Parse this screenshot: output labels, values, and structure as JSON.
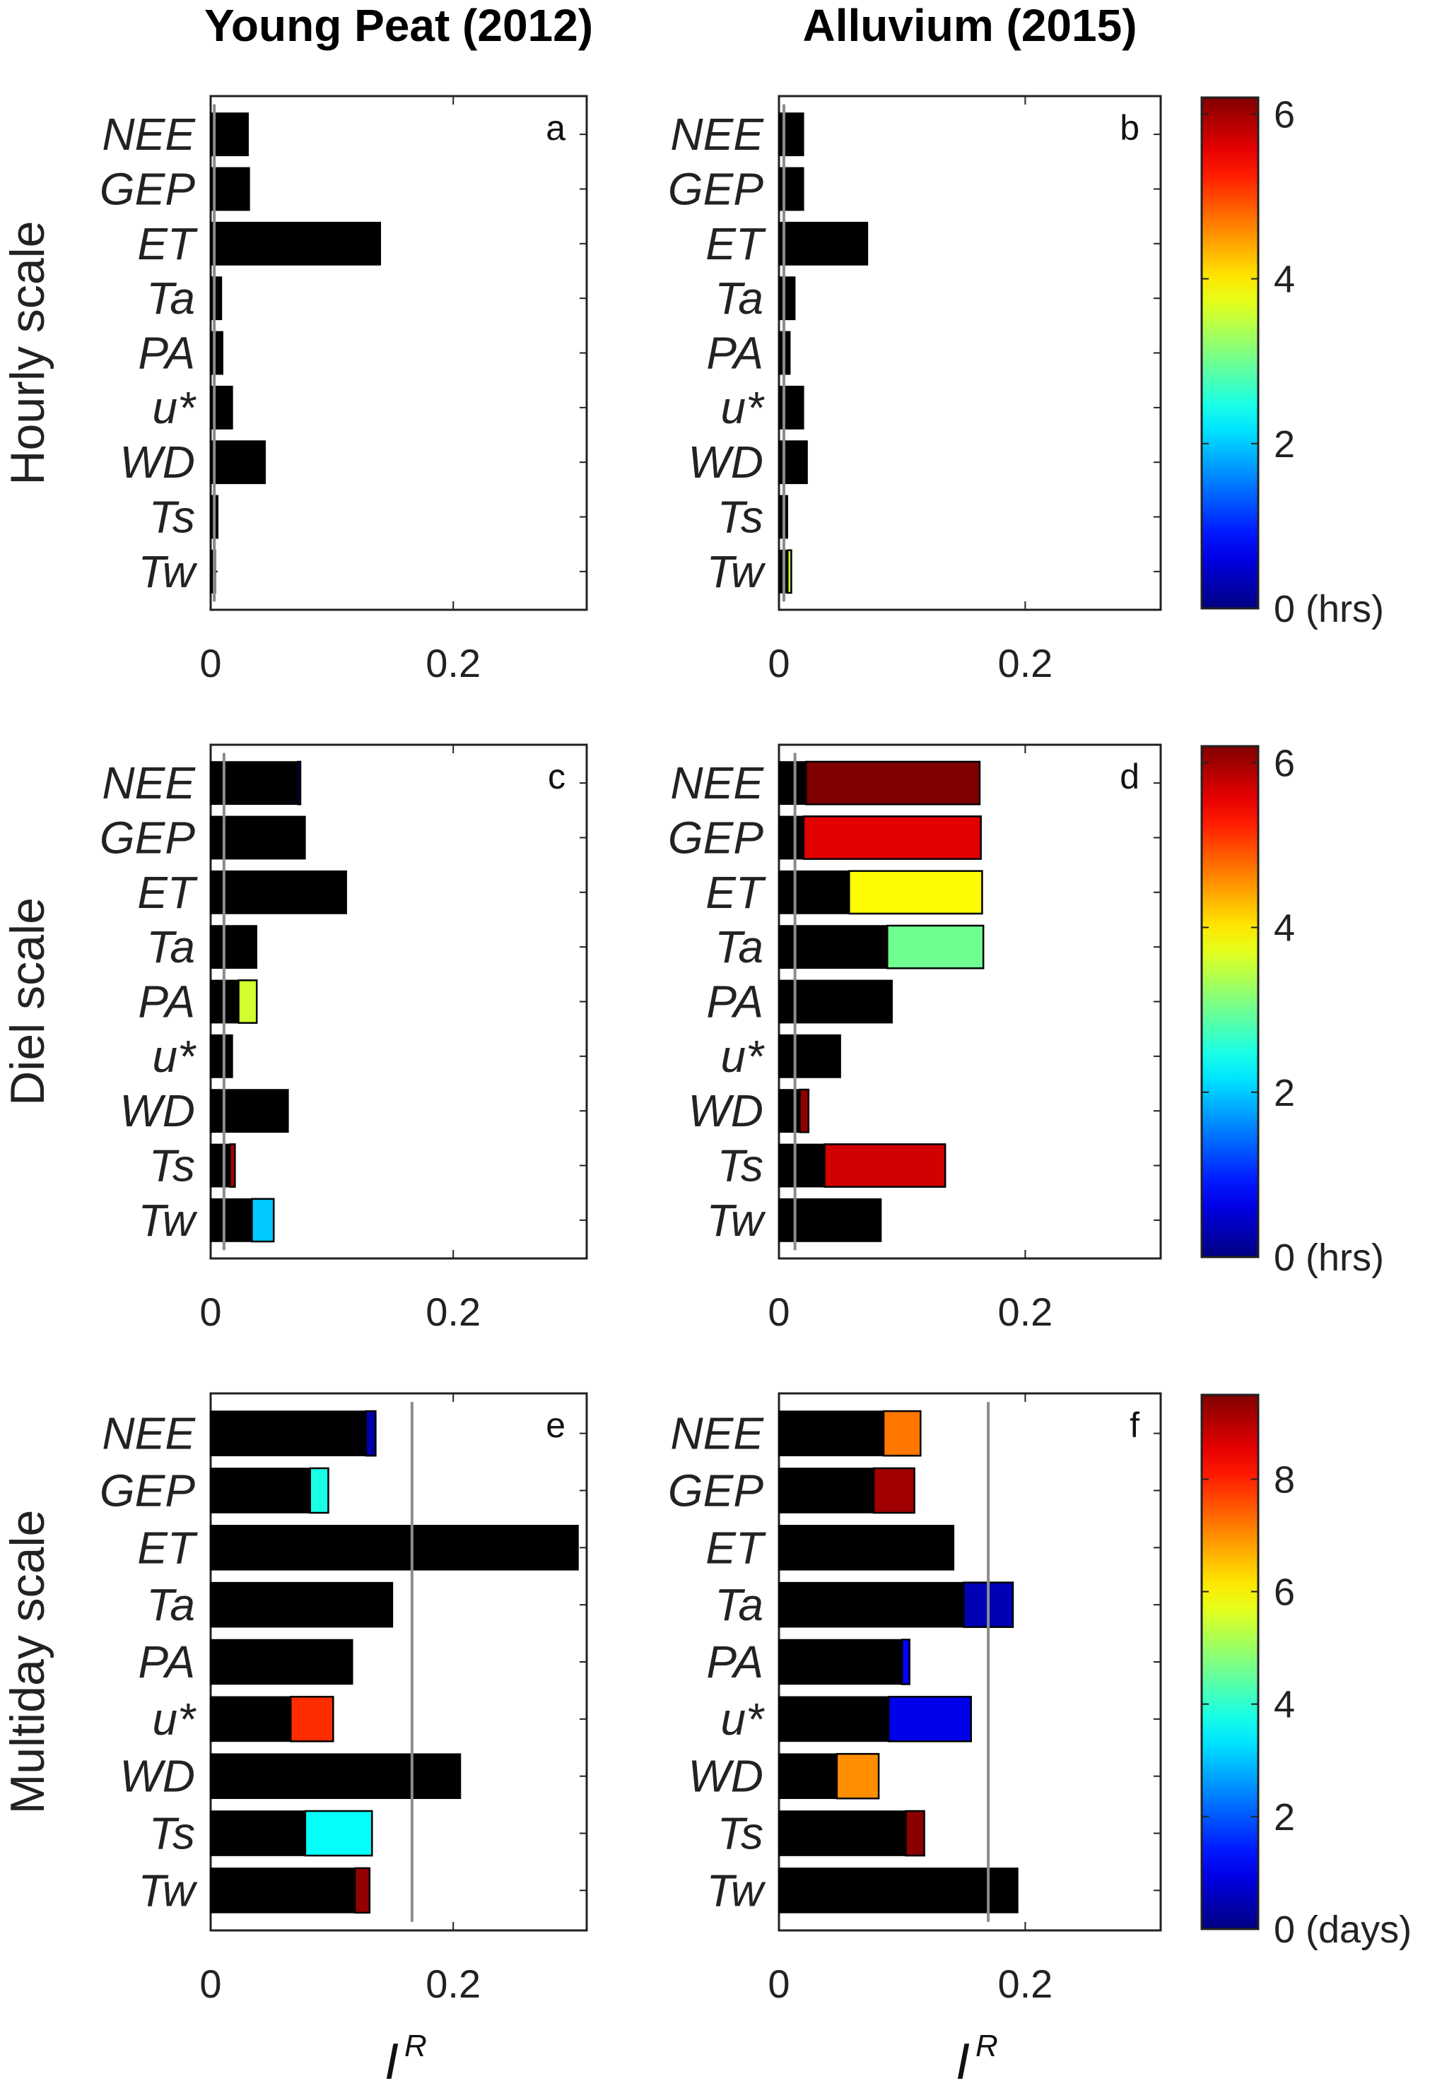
{
  "column_titles": [
    "Young Peat (2012)",
    "Alluvium (2015)"
  ],
  "row_titles": [
    "Hourly scale",
    "Diel scale",
    "Multiday scale"
  ],
  "x_axis_label": {
    "base": "I",
    "superscript": "R"
  },
  "chart_data": [
    {
      "type": "bar",
      "orientation": "horizontal-stacked",
      "panel": "a",
      "column": "Young Peat (2012)",
      "row": "Hourly scale",
      "categories": [
        "NEE",
        "GEP",
        "ET",
        "Ta",
        "PA",
        "u*",
        "WD",
        "Ts",
        "Tw"
      ],
      "xlim": [
        0,
        0.31
      ],
      "xticks": [
        0,
        0.2
      ],
      "xtick_labels": [
        "0",
        "0.2"
      ],
      "threshold": 0.003,
      "bars": [
        {
          "black": 0.031,
          "total": 0.031,
          "lag": null
        },
        {
          "black": 0.032,
          "total": 0.032,
          "lag": null
        },
        {
          "black": 0.14,
          "total": 0.14,
          "lag": null
        },
        {
          "black": 0.009,
          "total": 0.009,
          "lag": null
        },
        {
          "black": 0.01,
          "total": 0.01,
          "lag": null
        },
        {
          "black": 0.018,
          "total": 0.018,
          "lag": null
        },
        {
          "black": 0.045,
          "total": 0.045,
          "lag": null
        },
        {
          "black": 0.006,
          "total": 0.006,
          "lag": null
        },
        {
          "black": 0.004,
          "total": 0.004,
          "lag": null
        }
      ]
    },
    {
      "type": "bar",
      "orientation": "horizontal-stacked",
      "panel": "b",
      "column": "Alluvium (2015)",
      "row": "Hourly scale",
      "categories": [
        "NEE",
        "GEP",
        "ET",
        "Ta",
        "PA",
        "u*",
        "WD",
        "Ts",
        "Tw"
      ],
      "xlim": [
        0,
        0.31
      ],
      "xticks": [
        0,
        0.2
      ],
      "xtick_labels": [
        "0",
        "0.2"
      ],
      "threshold": 0.004,
      "bars": [
        {
          "black": 0.02,
          "total": 0.02,
          "lag": null
        },
        {
          "black": 0.02,
          "total": 0.02,
          "lag": null
        },
        {
          "black": 0.072,
          "total": 0.072,
          "lag": null
        },
        {
          "black": 0.013,
          "total": 0.013,
          "lag": null
        },
        {
          "black": 0.009,
          "total": 0.009,
          "lag": null
        },
        {
          "black": 0.02,
          "total": 0.02,
          "lag": null
        },
        {
          "black": 0.023,
          "total": 0.023,
          "lag": null
        },
        {
          "black": 0.007,
          "total": 0.007,
          "lag": null
        },
        {
          "black": 0.007,
          "total": 0.01,
          "lag": 3.5
        }
      ]
    },
    {
      "type": "bar",
      "orientation": "horizontal-stacked",
      "panel": "c",
      "column": "Young Peat (2012)",
      "row": "Diel scale",
      "categories": [
        "NEE",
        "GEP",
        "ET",
        "Ta",
        "PA",
        "u*",
        "WD",
        "Ts",
        "Tw"
      ],
      "xlim": [
        0,
        0.31
      ],
      "xticks": [
        0,
        0.2
      ],
      "xtick_labels": [
        "0",
        "0.2"
      ],
      "threshold": 0.011,
      "bars": [
        {
          "black": 0.072,
          "total": 0.074,
          "lag": 0.1
        },
        {
          "black": 0.078,
          "total": 0.078,
          "lag": null
        },
        {
          "black": 0.112,
          "total": 0.112,
          "lag": null
        },
        {
          "black": 0.038,
          "total": 0.038,
          "lag": null
        },
        {
          "black": 0.023,
          "total": 0.038,
          "lag": 3.6
        },
        {
          "black": 0.018,
          "total": 0.018,
          "lag": null
        },
        {
          "black": 0.064,
          "total": 0.064,
          "lag": null
        },
        {
          "black": 0.016,
          "total": 0.02,
          "lag": 5.9
        },
        {
          "black": 0.034,
          "total": 0.052,
          "lag": 2.0
        }
      ]
    },
    {
      "type": "bar",
      "orientation": "horizontal-stacked",
      "panel": "d",
      "column": "Alluvium (2015)",
      "row": "Diel scale",
      "categories": [
        "NEE",
        "GEP",
        "ET",
        "Ta",
        "PA",
        "u*",
        "WD",
        "Ts",
        "Tw"
      ],
      "xlim": [
        0,
        0.31
      ],
      "xticks": [
        0,
        0.2
      ],
      "xtick_labels": [
        "0",
        "0.2"
      ],
      "threshold": 0.013,
      "bars": [
        {
          "black": 0.022,
          "total": 0.163,
          "lag": 6.2
        },
        {
          "black": 0.02,
          "total": 0.164,
          "lag": 5.6
        },
        {
          "black": 0.057,
          "total": 0.165,
          "lag": 3.9
        },
        {
          "black": 0.088,
          "total": 0.166,
          "lag": 3.0
        },
        {
          "black": 0.092,
          "total": 0.092,
          "lag": null
        },
        {
          "black": 0.05,
          "total": 0.05,
          "lag": null
        },
        {
          "black": 0.017,
          "total": 0.024,
          "lag": 6.1
        },
        {
          "black": 0.037,
          "total": 0.135,
          "lag": 5.7
        },
        {
          "black": 0.083,
          "total": 0.083,
          "lag": null
        }
      ]
    },
    {
      "type": "bar",
      "orientation": "horizontal-stacked",
      "panel": "e",
      "column": "Young Peat (2012)",
      "row": "Multiday scale",
      "categories": [
        "NEE",
        "GEP",
        "ET",
        "Ta",
        "PA",
        "u*",
        "WD",
        "Ts",
        "Tw"
      ],
      "xlim": [
        0,
        0.31
      ],
      "xticks": [
        0,
        0.2
      ],
      "xtick_labels": [
        "0",
        "0.2"
      ],
      "threshold": 0.166,
      "bars": [
        {
          "black": 0.128,
          "total": 0.136,
          "lag": 0.4
        },
        {
          "black": 0.082,
          "total": 0.097,
          "lag": 3.8
        },
        {
          "black": 0.303,
          "total": 0.303,
          "lag": null
        },
        {
          "black": 0.15,
          "total": 0.15,
          "lag": null
        },
        {
          "black": 0.117,
          "total": 0.117,
          "lag": null
        },
        {
          "black": 0.066,
          "total": 0.101,
          "lag": 7.9
        },
        {
          "black": 0.206,
          "total": 0.206,
          "lag": null
        },
        {
          "black": 0.078,
          "total": 0.133,
          "lag": 3.6
        },
        {
          "black": 0.119,
          "total": 0.131,
          "lag": 9.3
        }
      ]
    },
    {
      "type": "bar",
      "orientation": "horizontal-stacked",
      "panel": "f",
      "column": "Alluvium (2015)",
      "row": "Multiday scale",
      "categories": [
        "NEE",
        "GEP",
        "ET",
        "Ta",
        "PA",
        "u*",
        "WD",
        "Ts",
        "Tw"
      ],
      "xlim": [
        0,
        0.31
      ],
      "xticks": [
        0,
        0.2
      ],
      "xtick_labels": [
        "0",
        "0.2"
      ],
      "threshold": 0.17,
      "bars": [
        {
          "black": 0.085,
          "total": 0.115,
          "lag": 7.2
        },
        {
          "black": 0.077,
          "total": 0.11,
          "lag": 9.2
        },
        {
          "black": 0.142,
          "total": 0.142,
          "lag": null
        },
        {
          "black": 0.15,
          "total": 0.19,
          "lag": 0.5
        },
        {
          "black": 0.1,
          "total": 0.106,
          "lag": 1.2
        },
        {
          "black": 0.089,
          "total": 0.156,
          "lag": 1.0
        },
        {
          "black": 0.047,
          "total": 0.081,
          "lag": 7.0
        },
        {
          "black": 0.103,
          "total": 0.118,
          "lag": 9.4
        },
        {
          "black": 0.194,
          "total": 0.194,
          "lag": null
        }
      ]
    }
  ],
  "colorbars": [
    {
      "row": "Hourly scale",
      "min": 0,
      "max": 6.2,
      "ticks": [
        0,
        2,
        4,
        6
      ],
      "tick_labels": [
        "0 (hrs)",
        "2",
        "4",
        "6"
      ]
    },
    {
      "row": "Diel scale",
      "min": 0,
      "max": 6.2,
      "ticks": [
        0,
        2,
        4,
        6
      ],
      "tick_labels": [
        "0 (hrs)",
        "2",
        "4",
        "6"
      ]
    },
    {
      "row": "Multiday scale",
      "min": 0,
      "max": 9.5,
      "ticks": [
        0,
        2,
        4,
        6,
        8
      ],
      "tick_labels": [
        "0 (days)",
        "2",
        "4",
        "6",
        "8"
      ]
    }
  ],
  "colors": {
    "bar_base": "#000000",
    "threshold_line": "#8c8c8c",
    "axis": "#222222",
    "colormap": "jet",
    "colormap_stops": [
      "#00008f",
      "#0000ff",
      "#00ffff",
      "#ffff00",
      "#ff0000",
      "#800000"
    ]
  }
}
